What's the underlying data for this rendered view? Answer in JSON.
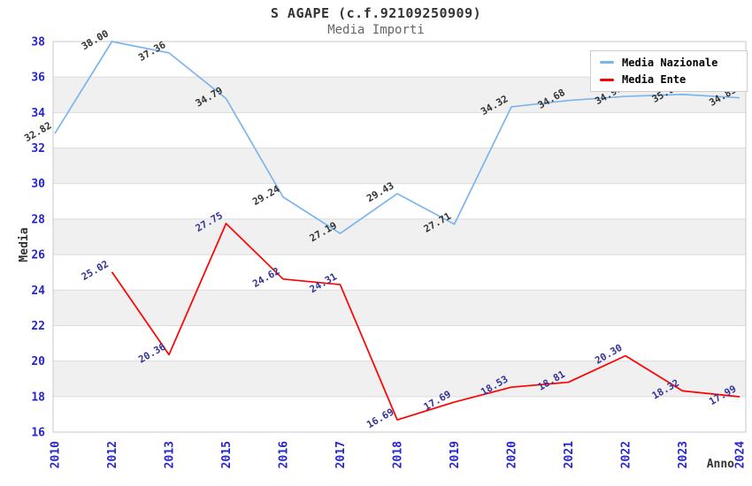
{
  "chart_data": {
    "type": "line",
    "title": "S AGAPE (c.f.92109250909)",
    "subtitle": "Media Importi",
    "xlabel": "Anno",
    "ylabel": "Media",
    "categories": [
      "2010",
      "2012",
      "2013",
      "2015",
      "2016",
      "2017",
      "2018",
      "2019",
      "2020",
      "2021",
      "2022",
      "2023",
      "2024"
    ],
    "series": [
      {
        "name": "Media Nazionale",
        "color": "#7cb5ec",
        "label_color": "#333333",
        "values": [
          32.82,
          38.0,
          37.36,
          34.79,
          29.24,
          27.19,
          29.43,
          27.71,
          34.32,
          34.68,
          34.91,
          35.02,
          34.83
        ]
      },
      {
        "name": "Media Ente",
        "color": "#ff0000",
        "label_color": "#333399",
        "values": [
          null,
          25.02,
          20.36,
          27.75,
          24.62,
          24.31,
          16.69,
          17.69,
          18.53,
          18.81,
          20.3,
          18.32,
          17.99
        ]
      }
    ],
    "ylim": [
      16,
      38
    ],
    "ytick_step": 2,
    "grid": true,
    "band_color": "#f0f0f0",
    "gridline_color": "#dcdcdc",
    "border_color": "#c8c8c8",
    "tick_label_color": "#2626cc",
    "legend_position": "top-right",
    "value_decimals": 2
  }
}
